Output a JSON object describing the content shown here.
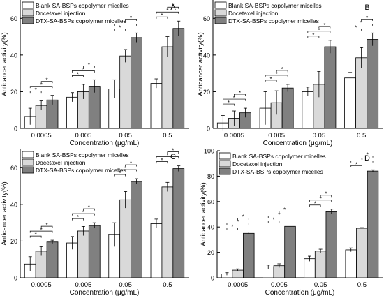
{
  "chart_data": [
    {
      "type": "bar",
      "panel_letter": "A",
      "categories": [
        "0.0005",
        "0.005",
        "0.05",
        "0.5"
      ],
      "xlabel": "Concentration (μg/mL)",
      "ylabel": "Anticancer activity(%)",
      "ylim": [
        0,
        70
      ],
      "yticks": [
        0,
        20,
        40,
        60
      ],
      "legend_position": "top-left",
      "series": [
        {
          "name": "Blank SA-BSPs copolymer micelles",
          "fill": "#ffffff",
          "values": [
            6.5,
            17,
            21.5,
            24.5
          ],
          "errors": [
            4.5,
            2.5,
            5,
            2.5
          ]
        },
        {
          "name": "Docetaxel injection",
          "fill": "#d9d9d9",
          "values": [
            12.5,
            20,
            39.5,
            44.5
          ],
          "errors": [
            2.5,
            4,
            3.5,
            5.5
          ]
        },
        {
          "name": "DTX-SA-BSPs copolymer micelles",
          "fill": "#808080",
          "values": [
            15.5,
            23,
            49.5,
            54.5
          ],
          "errors": [
            2.5,
            3.5,
            2.5,
            4
          ]
        }
      ],
      "star_levels": [
        [
          [
            0,
            1
          ],
          [
            0,
            2
          ],
          [
            1,
            2
          ]
        ],
        [
          [
            0,
            1
          ],
          [
            0,
            2
          ],
          [
            1,
            2
          ]
        ],
        [
          [
            0,
            1
          ],
          [
            0,
            2
          ],
          [
            1,
            2
          ]
        ],
        [
          [
            0,
            1
          ],
          [
            0,
            2
          ],
          [
            1,
            2
          ]
        ]
      ]
    },
    {
      "type": "bar",
      "panel_letter": "B",
      "categories": [
        "0.0005",
        "0.005",
        "0.05",
        "0.5"
      ],
      "xlabel": "Concentration (μg/mL)",
      "ylabel": "Anticancer activity(%)",
      "ylim": [
        0,
        70
      ],
      "yticks": [
        0,
        20,
        40,
        60
      ],
      "legend_position": "top-left",
      "series": [
        {
          "name": "Blank SA-BSPs copolymer micelles",
          "fill": "#ffffff",
          "values": [
            3,
            11,
            20,
            27.5
          ],
          "errors": [
            4,
            9,
            2.5,
            3
          ]
        },
        {
          "name": "Docetaxel injection",
          "fill": "#d9d9d9",
          "values": [
            5.5,
            14,
            24,
            38.5
          ],
          "errors": [
            4,
            6.5,
            7,
            5.5
          ]
        },
        {
          "name": "DTX-SA-BSPs copolymer micelles",
          "fill": "#808080",
          "values": [
            8.5,
            22,
            44.5,
            48.5
          ],
          "errors": [
            2.5,
            2,
            3.5,
            3.5
          ]
        }
      ],
      "star_levels": [
        [
          [
            0,
            1
          ],
          [
            0,
            2
          ],
          [
            1,
            2
          ]
        ],
        [
          [
            0,
            1
          ],
          [
            0,
            2
          ],
          [
            1,
            2
          ]
        ],
        [
          [
            0,
            1
          ],
          [
            0,
            2
          ],
          [
            1,
            2
          ]
        ],
        [
          [
            0,
            1
          ],
          [
            0,
            2
          ],
          [
            1,
            2
          ]
        ]
      ]
    },
    {
      "type": "bar",
      "panel_letter": "C",
      "categories": [
        "0.0005",
        "0.005",
        "0.05",
        "0.5"
      ],
      "xlabel": "Concentration (μg/mL)",
      "ylabel": "Anticancer activity(%)",
      "ylim": [
        0,
        70
      ],
      "yticks": [
        0,
        20,
        40,
        60
      ],
      "legend_position": "top-left",
      "series": [
        {
          "name": "Blank SA-BSPs copolymer micelles",
          "fill": "#ffffff",
          "values": [
            7.5,
            19,
            23.5,
            29.5
          ],
          "errors": [
            4,
            3.5,
            6.5,
            2.5
          ]
        },
        {
          "name": "Docetaxel injection",
          "fill": "#d9d9d9",
          "values": [
            14.5,
            25.5,
            42.5,
            49.5
          ],
          "errors": [
            2.5,
            2.5,
            4.5,
            2.5
          ]
        },
        {
          "name": "DTX-SA-BSPs copolymer micelles",
          "fill": "#808080",
          "values": [
            19.5,
            28.5,
            52.5,
            59.5
          ],
          "errors": [
            1,
            1.5,
            1.5,
            1.5
          ]
        }
      ],
      "star_levels": [
        [
          [
            0,
            1
          ],
          [
            0,
            2
          ],
          [
            1,
            2
          ]
        ],
        [
          [
            0,
            1
          ],
          [
            0,
            2
          ],
          [
            1,
            2
          ]
        ],
        [
          [
            0,
            1
          ],
          [
            0,
            2
          ],
          [
            1,
            2
          ]
        ],
        [
          [
            0,
            1
          ],
          [
            0,
            2
          ],
          [
            1,
            2
          ]
        ]
      ]
    },
    {
      "type": "bar",
      "panel_letter": "D",
      "categories": [
        "0.0005",
        "0.005",
        "0.05",
        "0.5"
      ],
      "xlabel": "Concentration (μg/mL)",
      "ylabel": "Anticancer activity(%)",
      "ylim": [
        0,
        100
      ],
      "yticks": [
        0,
        20,
        40,
        60,
        80,
        100
      ],
      "legend_position": "top-left",
      "series": [
        {
          "name": "Blank SA-BSPs copolymer micelles",
          "fill": "#ffffff",
          "values": [
            3,
            8.5,
            15,
            22
          ],
          "errors": [
            1,
            1.5,
            2,
            1.5
          ]
        },
        {
          "name": "Docetaxel injection",
          "fill": "#d9d9d9",
          "values": [
            6,
            9.5,
            21,
            39
          ],
          "errors": [
            1,
            1.5,
            1.5,
            0.5
          ]
        },
        {
          "name": "DTX-SA-BSPs copolymer micelles",
          "fill": "#808080",
          "values": [
            35,
            40.5,
            52,
            84
          ],
          "errors": [
            1,
            1,
            2,
            1
          ]
        }
      ],
      "star_levels": [
        [
          [
            0,
            1
          ],
          [
            0,
            2
          ],
          [
            1,
            2
          ]
        ],
        [
          [
            0,
            1
          ],
          [
            0,
            2
          ],
          [
            1,
            2
          ]
        ],
        [
          [
            0,
            1
          ],
          [
            0,
            2
          ],
          [
            1,
            2
          ]
        ],
        [
          [
            0,
            1
          ],
          [
            0,
            2
          ],
          [
            1,
            2
          ]
        ]
      ]
    }
  ]
}
